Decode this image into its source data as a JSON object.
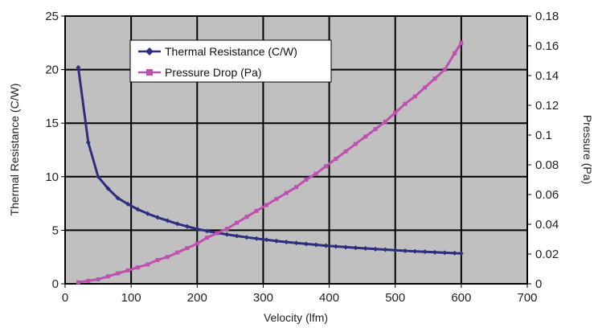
{
  "chart_data": {
    "type": "line",
    "xlabel": "Velocity (lfm)",
    "ylabel": "Thermal Resistance (C/W)",
    "y2label": "Pressure (Pa)",
    "xlim": [
      0,
      700
    ],
    "ylim": [
      0,
      25
    ],
    "y2lim": [
      0,
      0.18
    ],
    "x_ticks": [
      "0",
      "100",
      "200",
      "300",
      "400",
      "500",
      "600",
      "700"
    ],
    "y_ticks": [
      "0",
      "5",
      "10",
      "15",
      "20",
      "25"
    ],
    "y2_ticks": [
      "0",
      "0.02",
      "0.04",
      "0.06",
      "0.08",
      "0.1",
      "0.12",
      "0.14",
      "0.16",
      "0.18"
    ],
    "grid": true,
    "legend_position": "top-left",
    "colors": {
      "plot_background": "#c0c0c0",
      "grid": "#000000"
    },
    "series": [
      {
        "name": "Thermal Resistance (C/W)",
        "axis": "left",
        "color": "#2e2e7e",
        "marker": "diamond",
        "x": [
          20,
          35,
          50,
          65,
          80,
          95,
          110,
          125,
          140,
          155,
          170,
          185,
          200,
          215,
          230,
          245,
          260,
          275,
          290,
          305,
          320,
          335,
          350,
          365,
          380,
          395,
          410,
          425,
          440,
          455,
          470,
          485,
          500,
          515,
          530,
          545,
          560,
          575,
          590,
          600
        ],
        "y": [
          20.2,
          13.2,
          10.0,
          8.9,
          8.0,
          7.45,
          6.95,
          6.55,
          6.2,
          5.9,
          5.6,
          5.35,
          5.12,
          4.93,
          4.76,
          4.61,
          4.47,
          4.34,
          4.22,
          4.11,
          4.0,
          3.9,
          3.81,
          3.72,
          3.64,
          3.56,
          3.49,
          3.42,
          3.36,
          3.3,
          3.24,
          3.19,
          3.13,
          3.08,
          3.03,
          2.99,
          2.94,
          2.9,
          2.86,
          2.83
        ]
      },
      {
        "name": "Pressure Drop (Pa)",
        "axis": "right",
        "color": "#c050b0",
        "marker": "square",
        "x": [
          20,
          35,
          50,
          65,
          80,
          95,
          110,
          125,
          140,
          155,
          170,
          185,
          200,
          215,
          230,
          245,
          260,
          275,
          290,
          305,
          320,
          335,
          350,
          365,
          380,
          395,
          410,
          425,
          440,
          455,
          470,
          485,
          500,
          515,
          530,
          545,
          560,
          575,
          590,
          600
        ],
        "y": [
          0.001,
          0.002,
          0.003,
          0.005,
          0.007,
          0.009,
          0.011,
          0.013,
          0.016,
          0.018,
          0.021,
          0.024,
          0.027,
          0.031,
          0.034,
          0.037,
          0.041,
          0.045,
          0.049,
          0.053,
          0.057,
          0.061,
          0.065,
          0.07,
          0.074,
          0.079,
          0.084,
          0.089,
          0.094,
          0.099,
          0.104,
          0.109,
          0.115,
          0.121,
          0.126,
          0.132,
          0.138,
          0.144,
          0.155,
          0.162
        ]
      }
    ]
  }
}
